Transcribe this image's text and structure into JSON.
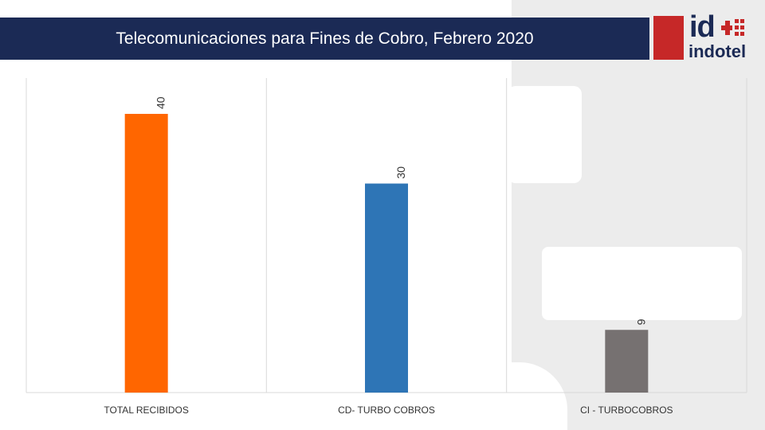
{
  "header": {
    "title": "Telecomunicaciones para Fines de Cobro, Febrero 2020"
  },
  "logo": {
    "mark": "id",
    "wordmark": "indotel",
    "brand_blue": "#1b2a55",
    "brand_red": "#c62828"
  },
  "chart_data": {
    "type": "bar",
    "categories": [
      "TOTAL RECIBIDOS",
      "CD- TURBO COBROS",
      "CI - TURBOCOBROS"
    ],
    "values": [
      40,
      30,
      9
    ],
    "colors": [
      "#ff6600",
      "#2e75b6",
      "#767171"
    ],
    "ylim": [
      0,
      40
    ],
    "data_labels": true,
    "data_label_rotation": "vertical",
    "grid": false,
    "legend": "none"
  }
}
